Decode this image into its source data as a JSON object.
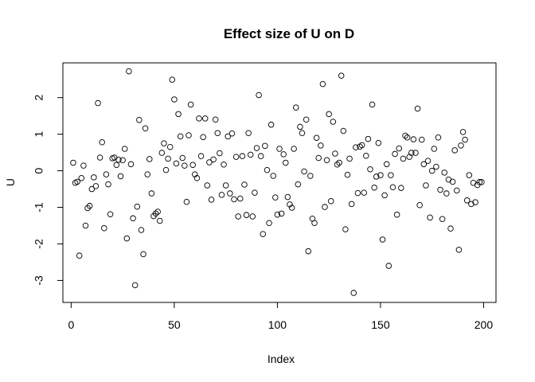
{
  "chart_data": {
    "type": "scatter",
    "title": "Effect size of U on D",
    "xlabel": "Index",
    "ylabel": "U",
    "xlim": [
      -4,
      206
    ],
    "ylim": [
      -3.6,
      2.95
    ],
    "xticks": [
      0,
      50,
      100,
      150,
      200
    ],
    "yticks": [
      -3,
      -2,
      -1,
      0,
      1,
      2
    ],
    "grid": false,
    "marker": "open-circle",
    "y": [
      0.22,
      -0.33,
      -0.3,
      -2.32,
      -0.2,
      0.14,
      -1.5,
      -1.02,
      -0.96,
      -0.5,
      -0.18,
      -0.42,
      1.85,
      0.36,
      0.78,
      -1.57,
      -0.1,
      -0.37,
      -1.19,
      0.34,
      0.36,
      0.16,
      0.3,
      -0.15,
      0.29,
      0.6,
      -1.85,
      2.72,
      0.18,
      -1.3,
      -3.13,
      -0.98,
      1.39,
      -1.62,
      -2.28,
      1.16,
      -0.1,
      0.32,
      -0.62,
      -1.24,
      -1.17,
      -1.12,
      -1.37,
      0.49,
      0.75,
      0.02,
      0.33,
      0.65,
      2.49,
      1.95,
      0.2,
      1.55,
      0.94,
      0.35,
      0.14,
      -0.85,
      0.97,
      1.81,
      0.16,
      -0.1,
      -0.2,
      1.43,
      0.4,
      0.92,
      1.43,
      -0.4,
      0.23,
      -0.79,
      0.31,
      1.4,
      1.03,
      0.48,
      -0.66,
      0.17,
      -0.4,
      0.94,
      -0.62,
      1.02,
      -0.78,
      0.38,
      -1.25,
      -0.76,
      0.4,
      -0.38,
      -1.21,
      1.03,
      0.44,
      -1.25,
      -0.6,
      0.62,
      2.07,
      0.4,
      -1.73,
      0.68,
      0.02,
      -1.43,
      1.26,
      -0.14,
      -0.73,
      -1.2,
      0.6,
      -1.17,
      0.45,
      0.22,
      -0.72,
      -0.92,
      -1.01,
      0.6,
      1.73,
      -0.37,
      1.2,
      1.03,
      -0.02,
      1.4,
      -2.2,
      -0.14,
      -1.31,
      -1.43,
      0.9,
      0.35,
      0.69,
      2.37,
      -0.99,
      0.29,
      1.55,
      -0.83,
      1.34,
      0.47,
      0.17,
      0.22,
      2.6,
      1.09,
      -1.6,
      -0.11,
      0.33,
      -0.91,
      -3.34,
      0.64,
      -0.61,
      0.66,
      0.7,
      -0.6,
      0.41,
      0.87,
      0.04,
      1.81,
      -0.46,
      -0.16,
      0.76,
      -0.12,
      -1.88,
      -0.67,
      0.18,
      -2.6,
      -0.12,
      -0.45,
      0.46,
      -1.2,
      0.61,
      -0.47,
      0.33,
      0.96,
      0.91,
      0.38,
      0.49,
      0.86,
      0.49,
      1.7,
      -0.94,
      0.85,
      0.18,
      -0.4,
      0.27,
      -1.28,
      0.0,
      0.6,
      0.11,
      0.91,
      -0.52,
      -1.32,
      -0.05,
      -0.62,
      -0.24,
      -1.58,
      -0.3,
      0.56,
      -0.54,
      -2.16,
      0.69,
      1.06,
      0.85,
      -0.81,
      -0.12,
      -0.91,
      -0.33,
      -0.86,
      -0.39,
      -0.31,
      -0.31
    ]
  }
}
